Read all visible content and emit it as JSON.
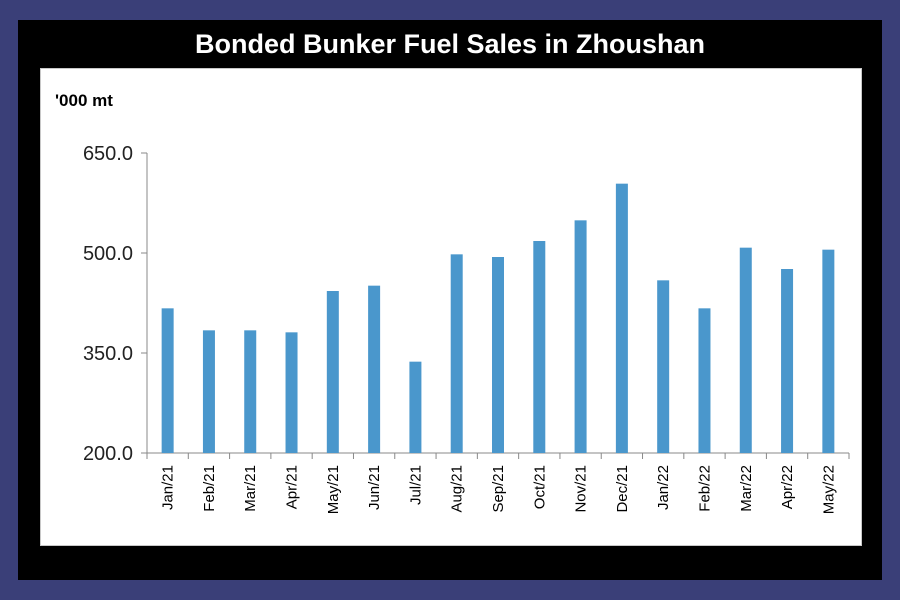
{
  "title": "Bonded Bunker Fuel Sales in Zhoushan",
  "colors": {
    "background": "#3a3f78",
    "frame": "#000000",
    "panel": "#ffffff",
    "bar": "#4a97cc"
  },
  "chart_data": {
    "type": "bar",
    "title": "Bonded Bunker Fuel Sales in Zhoushan",
    "xlabel": "",
    "ylabel": "'000 mt",
    "ylim": [
      200,
      650
    ],
    "yticks": [
      "200.0",
      "350.0",
      "500.0",
      "650.0"
    ],
    "ytick_values": [
      200,
      350,
      500,
      650
    ],
    "grid": false,
    "legend": "none",
    "categories": [
      "Jan/21",
      "Feb/21",
      "Mar/21",
      "Apr/21",
      "May/21",
      "Jun/21",
      "Jul/21",
      "Aug/21",
      "Sep/21",
      "Oct/21",
      "Nov/21",
      "Dec/21",
      "Jan/22",
      "Feb/22",
      "Mar/22",
      "Apr/22",
      "May/22"
    ],
    "values": [
      417,
      384,
      384,
      381,
      443,
      451,
      337,
      498,
      494,
      518,
      549,
      604,
      459,
      417,
      508,
      476,
      505
    ]
  }
}
